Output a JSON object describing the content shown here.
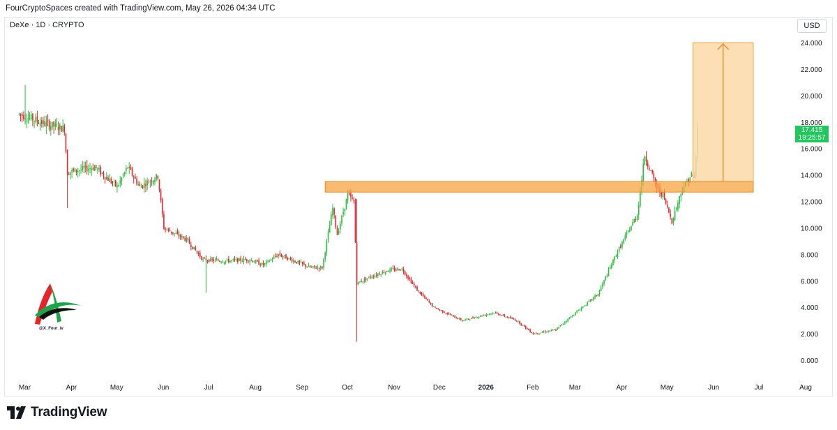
{
  "header": {
    "attribution": "FourCryptoSpaces created with TradingView.com, May 26, 2026 04:34 UTC"
  },
  "symbol": {
    "label": "DeXe · 1D · CRYPTO"
  },
  "currency": "USD",
  "price_tag": {
    "price": "17.415",
    "countdown": "19:25:57",
    "color": "#22c55e"
  },
  "watermark": {
    "icon": "stylized-a-logo-icon",
    "handle": "@X_Four_iv"
  },
  "footer": {
    "brand": "TradingView",
    "icon": "tradingview-logo-icon"
  },
  "colors": {
    "up": "#26c03a",
    "down": "#e5242a",
    "zone": "#f7a440",
    "target": "#fcd9a8"
  },
  "chart_data": {
    "type": "candlestick",
    "ylim": [
      0,
      24.6
    ],
    "y_ticks": [
      "0.000",
      "2.000",
      "4.000",
      "6.000",
      "8.000",
      "10.000",
      "12.000",
      "14.000",
      "16.000",
      "18.000",
      "20.000",
      "22.000",
      "24.000"
    ],
    "x_ticks": [
      "Mar",
      "Apr",
      "May",
      "Jun",
      "Jul",
      "Aug",
      "Sep",
      "Oct",
      "Nov",
      "Dec",
      "2026",
      "Feb",
      "Mar",
      "Apr",
      "May",
      "Jun",
      "Jul",
      "Aug"
    ],
    "grid": false,
    "close_path": [
      [
        "2025-03-01",
        18.6
      ],
      [
        "2025-03-20",
        17.8
      ],
      [
        "2025-03-31",
        17.5
      ],
      [
        "2025-04-02",
        14.2
      ],
      [
        "2025-04-20",
        14.6
      ],
      [
        "2025-05-05",
        13.1
      ],
      [
        "2025-05-12",
        14.6
      ],
      [
        "2025-05-20",
        13.1
      ],
      [
        "2025-06-01",
        13.9
      ],
      [
        "2025-06-05",
        10.0
      ],
      [
        "2025-06-20",
        9.1
      ],
      [
        "2025-07-01",
        7.6
      ],
      [
        "2025-07-15",
        7.5
      ],
      [
        "2025-08-01",
        7.6
      ],
      [
        "2025-08-10",
        7.2
      ],
      [
        "2025-08-20",
        8.0
      ],
      [
        "2025-09-10",
        7.0
      ],
      [
        "2025-09-18",
        7.0
      ],
      [
        "2025-09-25",
        11.5
      ],
      [
        "2025-09-28",
        9.5
      ],
      [
        "2025-10-05",
        12.5
      ],
      [
        "2025-10-09",
        12.0
      ],
      [
        "2025-10-11",
        5.8
      ],
      [
        "2025-10-20",
        6.3
      ],
      [
        "2025-11-01",
        6.8
      ],
      [
        "2025-11-10",
        6.9
      ],
      [
        "2025-11-20",
        5.3
      ],
      [
        "2025-12-01",
        4.0
      ],
      [
        "2025-12-20",
        3.0
      ],
      [
        "2026-01-10",
        3.6
      ],
      [
        "2026-01-25",
        3.0
      ],
      [
        "2026-02-05",
        2.0
      ],
      [
        "2026-02-20",
        2.3
      ],
      [
        "2026-03-01",
        3.2
      ],
      [
        "2026-03-20",
        5.0
      ],
      [
        "2026-04-01",
        8.0
      ],
      [
        "2026-04-15",
        11.0
      ],
      [
        "2026-04-20",
        15.5
      ],
      [
        "2026-04-28",
        13.0
      ],
      [
        "2026-05-02",
        12.5
      ],
      [
        "2026-05-08",
        10.5
      ],
      [
        "2026-05-15",
        13.0
      ],
      [
        "2026-05-21",
        14.0
      ],
      [
        "2026-05-23",
        13.7
      ],
      [
        "2026-05-25",
        17.415
      ]
    ],
    "last_price": 17.415,
    "resistance_zone": {
      "low": 12.7,
      "high": 13.5,
      "from": "2025-09-20",
      "to": "2026-07-01"
    },
    "target_box": {
      "low": 13.5,
      "high": 24.0,
      "from": "2026-05-22",
      "to": "2026-07-01"
    }
  }
}
